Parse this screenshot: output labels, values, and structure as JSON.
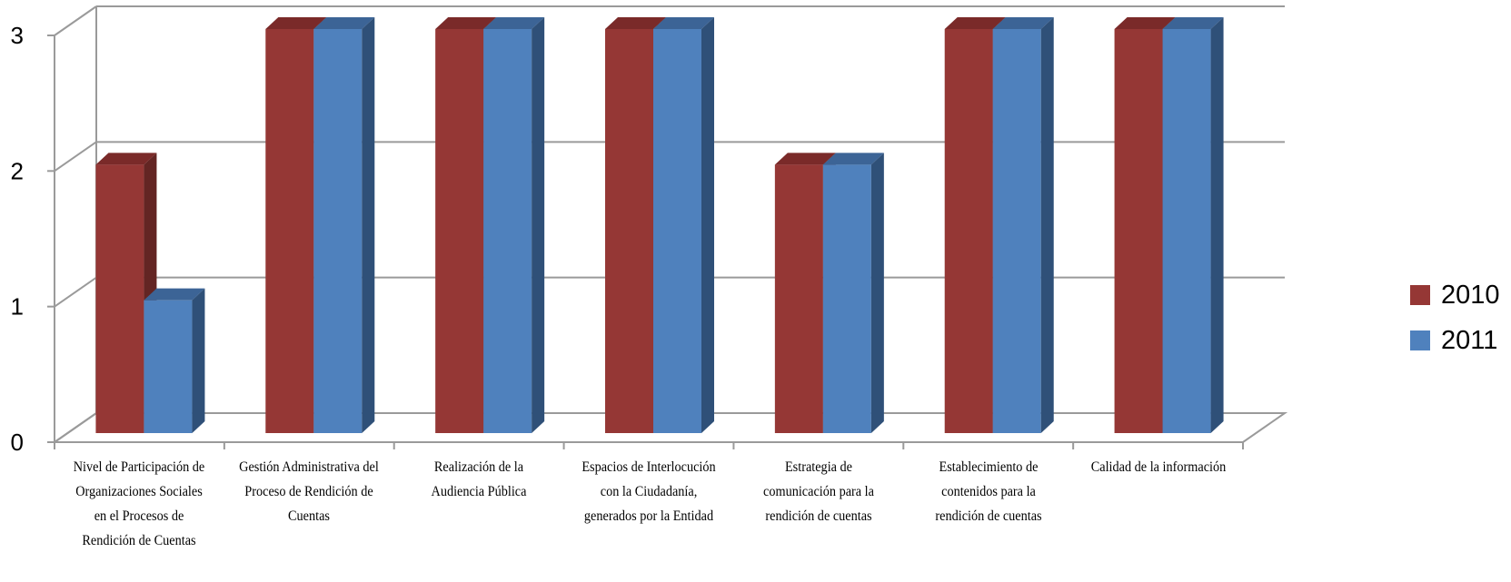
{
  "chart_data": {
    "type": "bar",
    "categories": [
      "Nivel de Participación de Organizaciones Sociales en el Procesos de Rendición de Cuentas",
      "Gestión Administrativa del Proceso de Rendición de Cuentas",
      "Realización de la Audiencia Pública",
      "Espacios de Interlocución con la Ciudadanía, generados por la Entidad",
      "Estrategia de comunicación para la rendición de cuentas",
      "Establecimiento de contenidos para la rendición de cuentas",
      "Calidad de la información"
    ],
    "category_lines": [
      [
        "Nivel de Participación de",
        "Organizaciones Sociales",
        "en el Procesos de",
        "Rendición de Cuentas"
      ],
      [
        "Gestión Administrativa del",
        "Proceso de Rendición de",
        "Cuentas"
      ],
      [
        "Realización de la",
        "Audiencia Pública"
      ],
      [
        "Espacios de Interlocución",
        "con la Ciudadanía,",
        "generados por la Entidad"
      ],
      [
        "Estrategia de",
        "comunicación para la",
        "rendición de cuentas"
      ],
      [
        "Establecimiento de",
        "contenidos para la",
        "rendición de cuentas"
      ],
      [
        "Calidad de la información"
      ]
    ],
    "series": [
      {
        "name": "2010",
        "values": [
          2,
          3,
          3,
          3,
          2,
          3,
          3
        ],
        "color": "#953735",
        "top_color": "#7A2A29",
        "side_color": "#632523"
      },
      {
        "name": "2011",
        "values": [
          1,
          3,
          3,
          3,
          2,
          3,
          3
        ],
        "color": "#4F81BD",
        "top_color": "#3C6496",
        "side_color": "#2F5078"
      }
    ],
    "y_ticks": [
      "0",
      "1",
      "2",
      "3"
    ],
    "ylim": [
      0,
      3
    ],
    "grid": true,
    "three_d": true,
    "legend_position": "right"
  }
}
